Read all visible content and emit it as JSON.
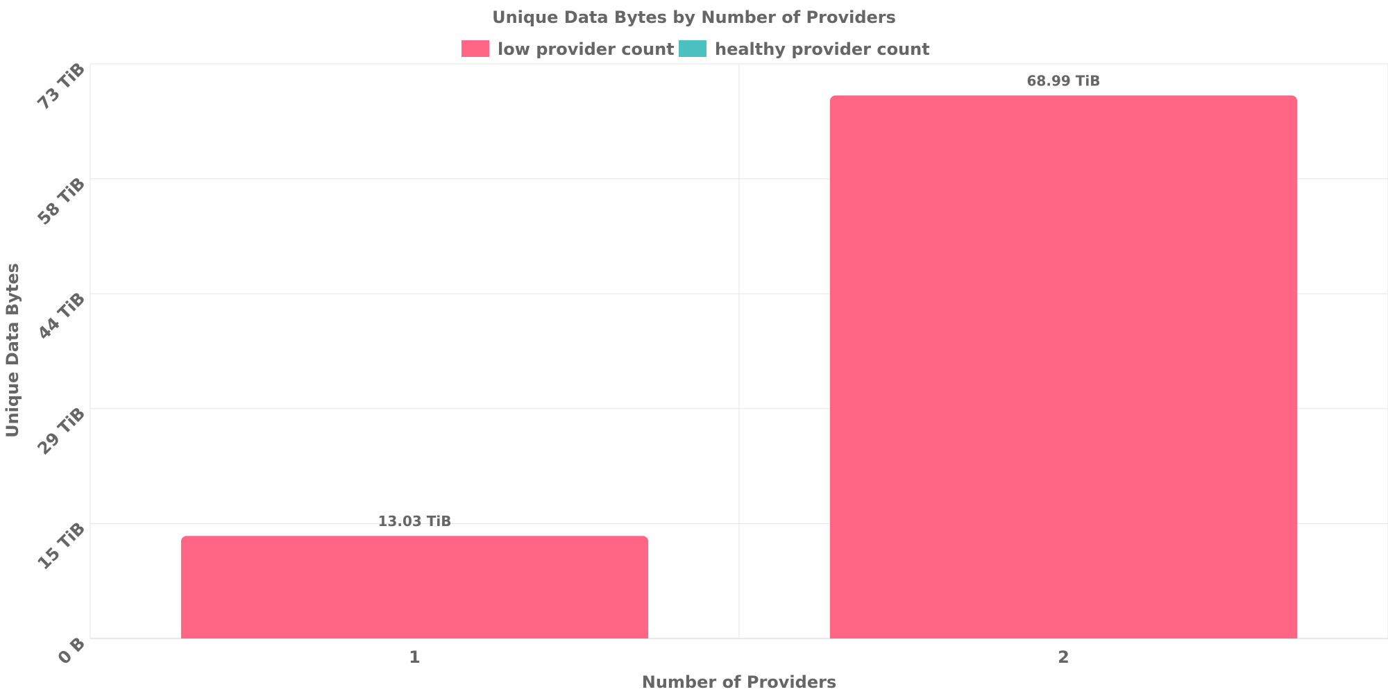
{
  "chart_data": {
    "type": "bar",
    "title": "Unique Data Bytes by Number of Providers",
    "xlabel": "Number of Providers",
    "ylabel": "Unique Data Bytes",
    "categories": [
      "1",
      "2"
    ],
    "series": [
      {
        "name": "low provider count",
        "color": "#ff6584",
        "values": [
          13.03,
          68.99
        ]
      },
      {
        "name": "healthy provider count",
        "color": "#4bc0c0",
        "values": [
          0,
          0
        ]
      }
    ],
    "value_unit": "TiB",
    "data_labels": [
      "13.03 TiB",
      "68.99 TiB"
    ],
    "y_ticks": [
      0,
      14.6,
      29.2,
      43.8,
      58.4,
      73
    ],
    "y_tick_labels": [
      "0 B",
      "15 TiB",
      "29 TiB",
      "44 TiB",
      "58 TiB",
      "73 TiB"
    ],
    "ylim": [
      0,
      73
    ],
    "grid": true,
    "legend_position": "top-center",
    "colors": {
      "text": "#666666",
      "grid": "#e5e5e5",
      "axis": "#d0d0d0"
    }
  }
}
